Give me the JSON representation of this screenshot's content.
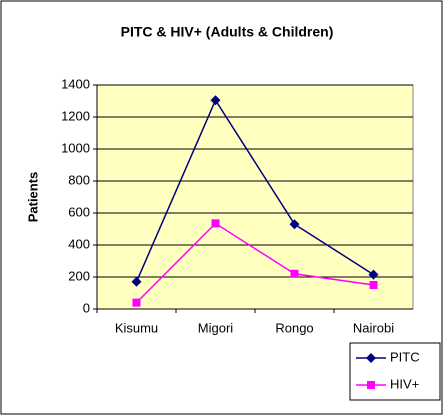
{
  "chart_data": {
    "type": "line",
    "title": "PITC & HIV+ (Adults & Children)",
    "y_label": "Patients",
    "categories": [
      "Kisumu",
      "Migori",
      "Rongo",
      "Nairobi"
    ],
    "series": [
      {
        "name": "PITC",
        "color": "#000080",
        "marker": "diamond",
        "values": [
          170,
          1305,
          530,
          215
        ]
      },
      {
        "name": "HIV+",
        "color": "#ff00ff",
        "marker": "square",
        "values": [
          40,
          535,
          220,
          150
        ]
      }
    ],
    "ylim": [
      0,
      1400
    ],
    "yticks": [
      0,
      200,
      400,
      600,
      800,
      1000,
      1200,
      1400
    ],
    "grid": true,
    "legend": "bottom-right"
  }
}
